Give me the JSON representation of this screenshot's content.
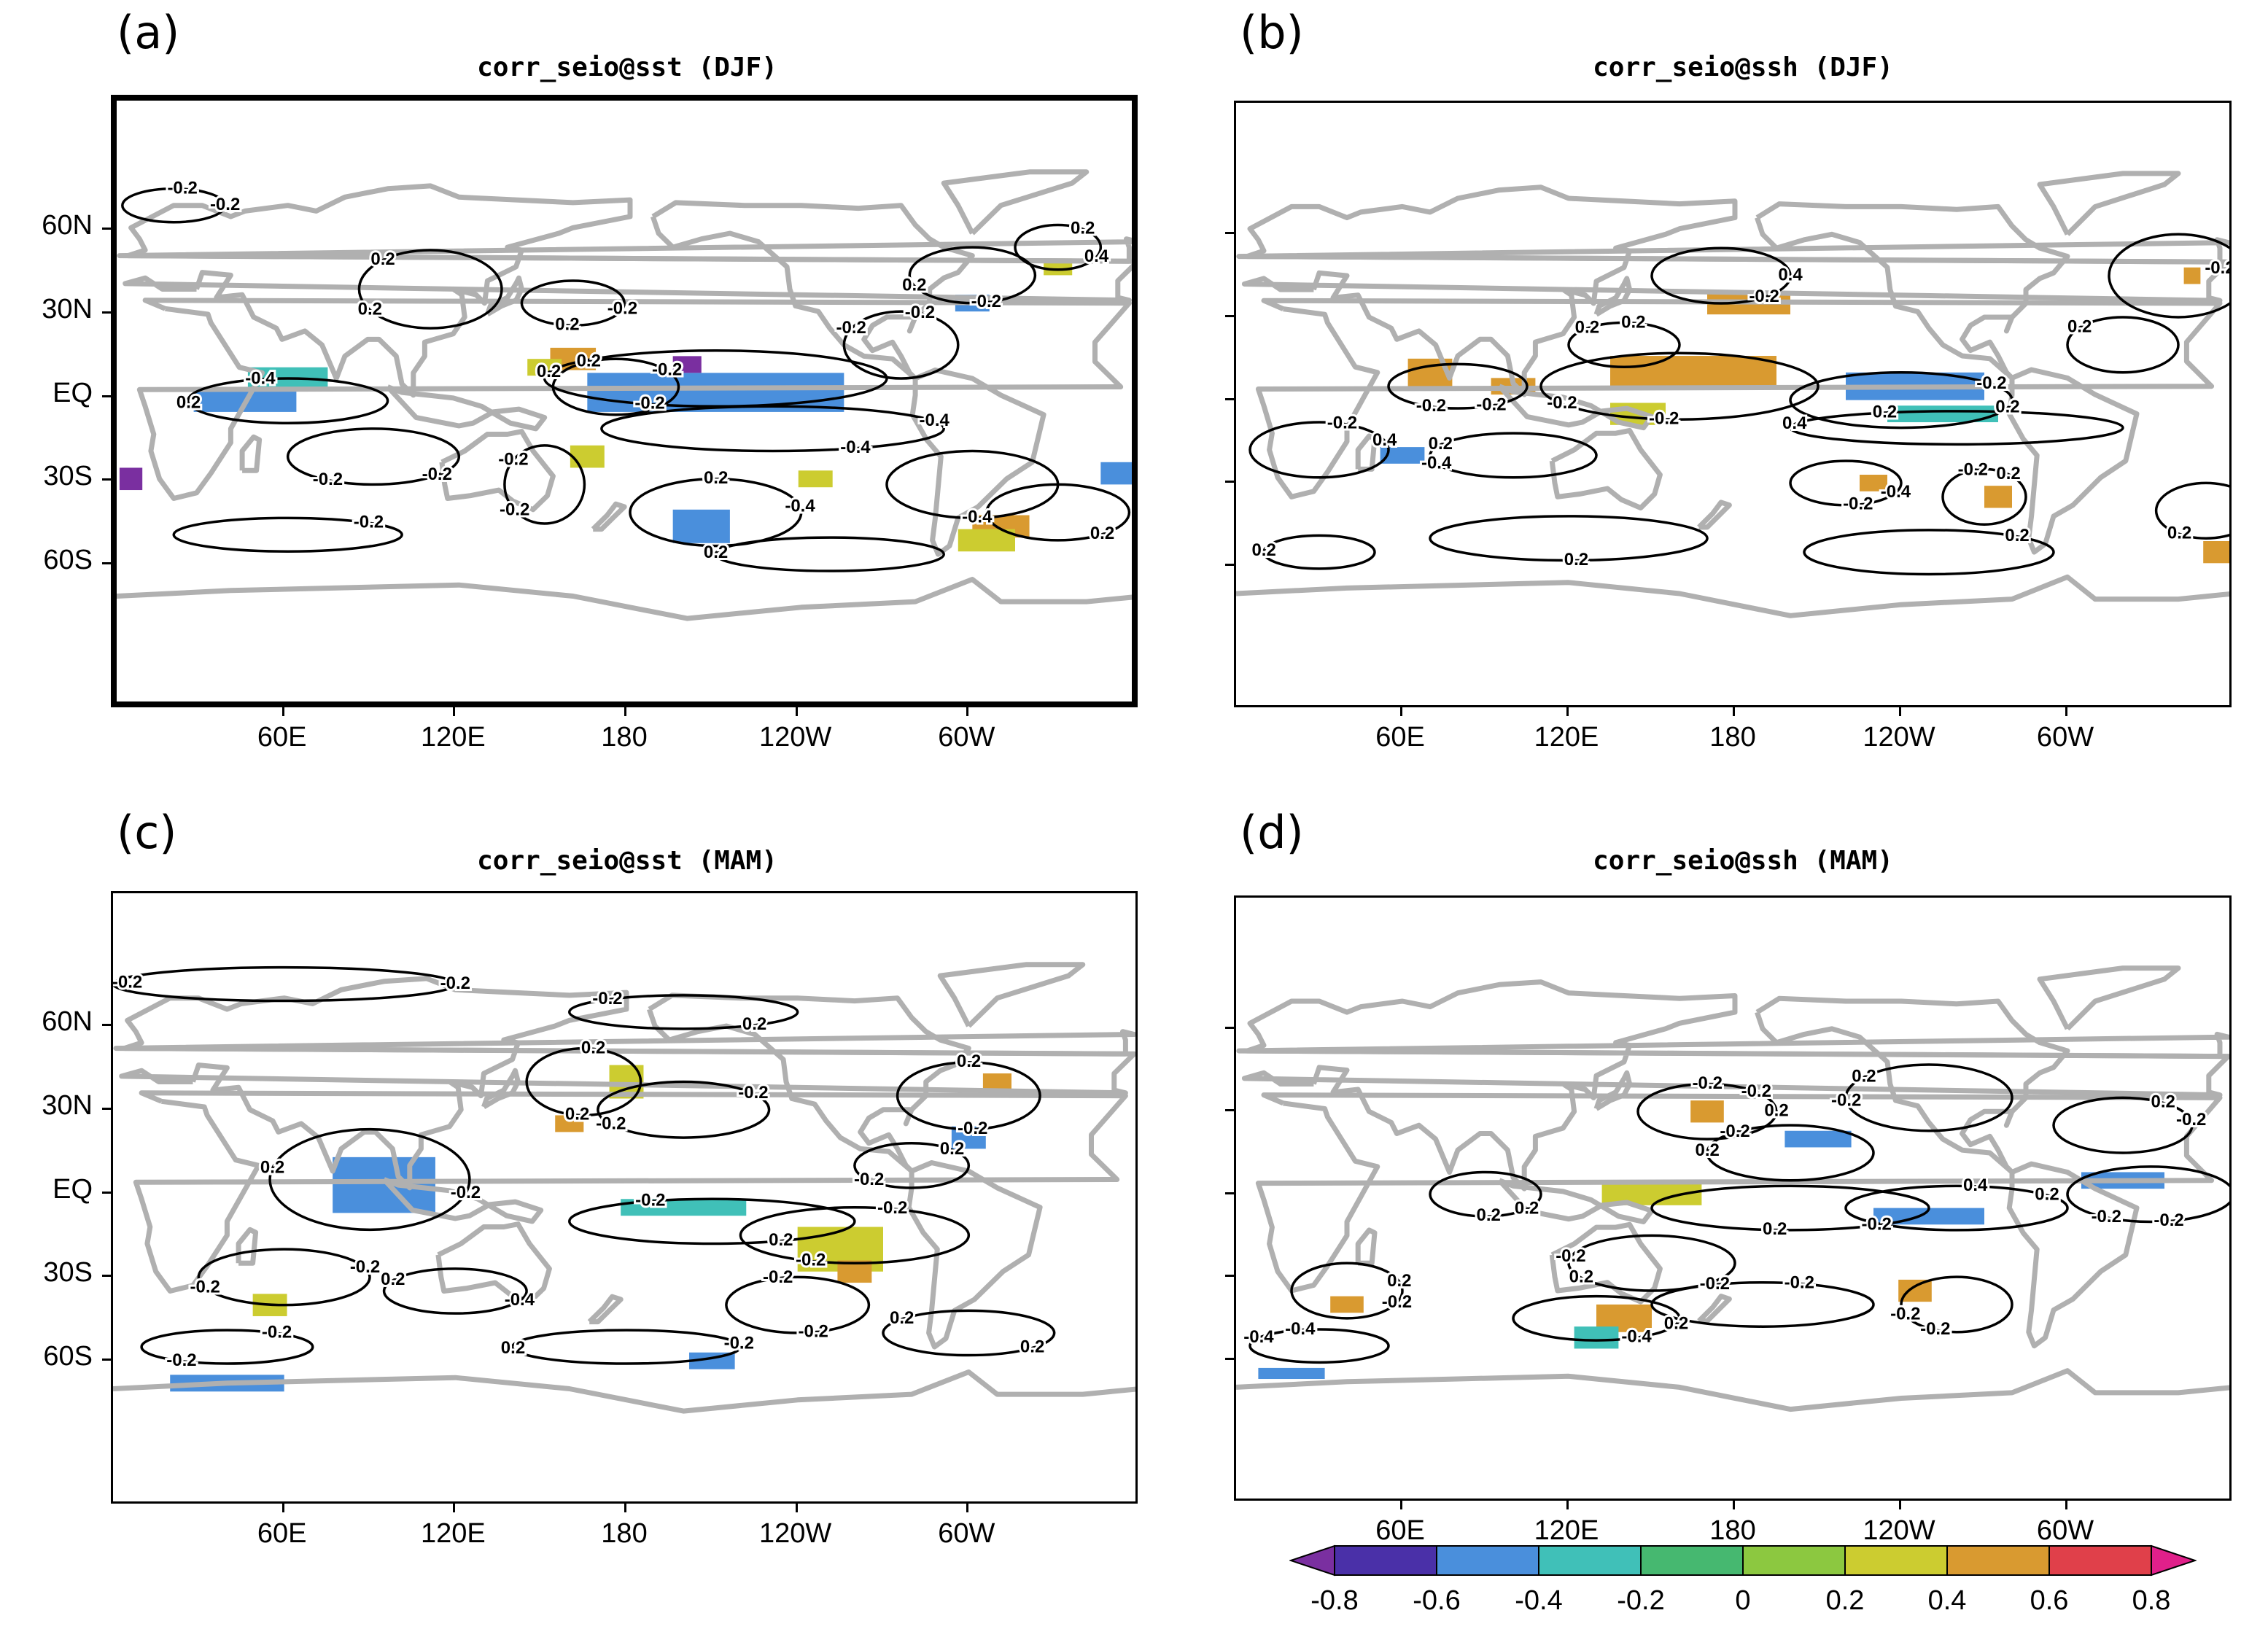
{
  "panels": [
    {
      "id": "a",
      "label": "(a)",
      "title": "corr_seio@sst (DJF)",
      "y_ticks": [
        "60N",
        "30N",
        "EQ",
        "30S",
        "60S"
      ],
      "x_ticks": [
        "60E",
        "120E",
        "180",
        "120W",
        "60W"
      ],
      "contour_labels": [
        "-0.2",
        "0.2",
        "0.2",
        "-0.2",
        "0.2",
        "-0.4",
        "-0.2",
        "0.2",
        "0.4",
        "-0.4",
        "-0.2",
        "-0.4",
        "-0.2",
        "-0.4",
        "-0.2",
        "0.2",
        "0.2",
        "-0.2",
        "0.2",
        "-0.2",
        "0.2",
        "-0.2",
        "-0.4",
        "-0.2",
        "-0.2",
        "0.2",
        "0.2",
        "-0.2",
        "0.2",
        "-0.2"
      ],
      "thick_border": true
    },
    {
      "id": "b",
      "label": "(b)",
      "title": "corr_seio@ssh (DJF)",
      "y_ticks": [],
      "x_ticks": [
        "60E",
        "120E",
        "180",
        "120W",
        "60W"
      ],
      "contour_labels": [
        "0.4",
        "0.2",
        "-0.2",
        "-0.2",
        "0.4",
        "-0.2",
        "-0.2",
        "-0.4",
        "-0.4",
        "-0.2",
        "0.2",
        "-0.2",
        "0.2",
        "0.2",
        "0.2",
        "0.2",
        "-0.2",
        "0.2",
        "-0.2",
        "0.2",
        "0.2",
        "-0.2",
        "0.4",
        "0.2",
        "-0.2",
        "0.2"
      ],
      "thick_border": false
    },
    {
      "id": "c",
      "label": "(c)",
      "title": "corr_seio@sst (MAM)",
      "y_ticks": [
        "60N",
        "30N",
        "EQ",
        "30S",
        "60S"
      ],
      "x_ticks": [
        "60E",
        "120E",
        "180",
        "120W",
        "60W"
      ],
      "contour_labels": [
        "-0.2",
        "-0.2",
        "0.2",
        "-0.2",
        "0.2",
        "0.2",
        "-0.2",
        "-0.2",
        "-0.4",
        "-0.2",
        "-0.2",
        "-0.2",
        "0.2",
        "-0.2",
        "0.2",
        "-0.2",
        "0.2",
        "0.2",
        "-0.2",
        "-0.2",
        "-0.2",
        "-0.2",
        "-0.2",
        "0.2",
        "-0.2",
        "-0.2",
        "0.2",
        "0.2",
        "0.2",
        "-0.2"
      ],
      "thick_border": false
    },
    {
      "id": "d",
      "label": "(d)",
      "title": "corr_seio@ssh (MAM)",
      "y_ticks": [],
      "x_ticks": [
        "60E",
        "120E",
        "180",
        "120W",
        "60W"
      ],
      "contour_labels": [
        "0.2",
        "-0.2",
        "0.2",
        "0.2",
        "-0.2",
        "-0.4",
        "-0.2",
        "-0.2",
        "-0.2",
        "-0.4",
        "-0.2",
        "-0.2",
        "0.2",
        "0.2",
        "-0.2",
        "0.2",
        "-0.2",
        "0.4",
        "0.2",
        "0.2",
        "-0.2",
        "-0.2",
        "0.2",
        "-0.4",
        "-0.2",
        "0.2",
        "-0.2",
        "0.2",
        "-0.2"
      ],
      "thick_border": false
    }
  ],
  "colorbar": {
    "labels": [
      "-0.8",
      "-0.6",
      "-0.4",
      "-0.2",
      "0",
      "0.2",
      "0.4",
      "0.6",
      "0.8"
    ],
    "colors": [
      "#7a2fa0",
      "#4a30a8",
      "#4a8fdc",
      "#40c0b8",
      "#46b870",
      "#8cc840",
      "#cccc30",
      "#d99a30",
      "#e0404a",
      "#e0208a"
    ]
  }
}
